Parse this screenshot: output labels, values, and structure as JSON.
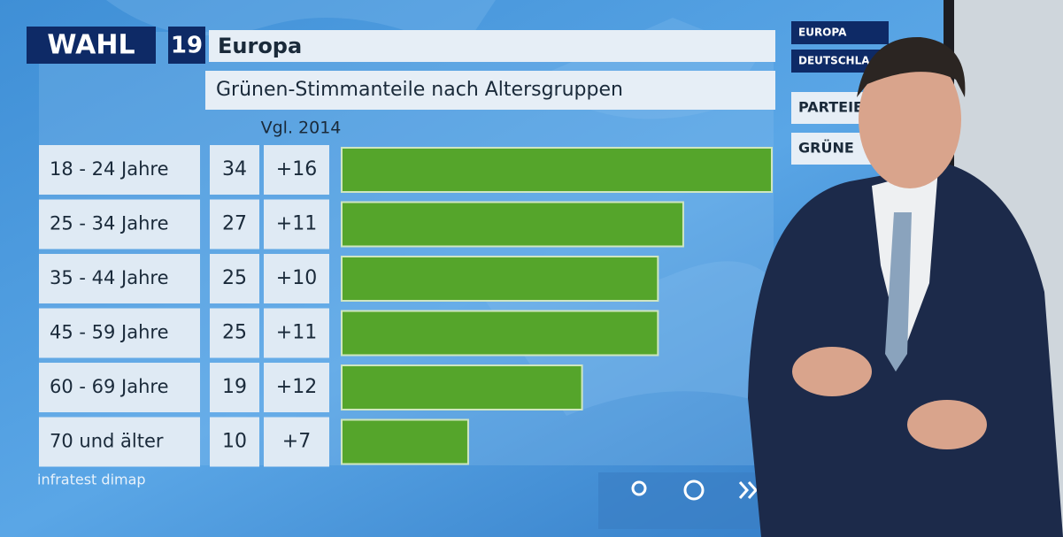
{
  "logo": {
    "word": "WAHL",
    "number": "19"
  },
  "menu": [
    "EUROPA",
    "DEUTSCHLA",
    "PARTEIE",
    "GRÜNE"
  ],
  "chart_data": {
    "type": "bar",
    "orientation": "horizontal",
    "title": "Europa",
    "subtitle": "Grünen-Stimmanteile nach Altersgruppen",
    "categories": [
      "18 - 24 Jahre",
      "25 - 34 Jahre",
      "35 - 44 Jahre",
      "45 - 59 Jahre",
      "60 - 69 Jahre",
      "70 und älter"
    ],
    "values": [
      34,
      27,
      25,
      25,
      19,
      10
    ],
    "color": "#55a52b",
    "change": {
      "header": "Vgl. 2014",
      "values": [
        16,
        11,
        10,
        11,
        12,
        7
      ],
      "value_labels": [
        "+16",
        "+11",
        "+10",
        "+11",
        "+12",
        "+7"
      ]
    },
    "source": "infratest dimap"
  }
}
